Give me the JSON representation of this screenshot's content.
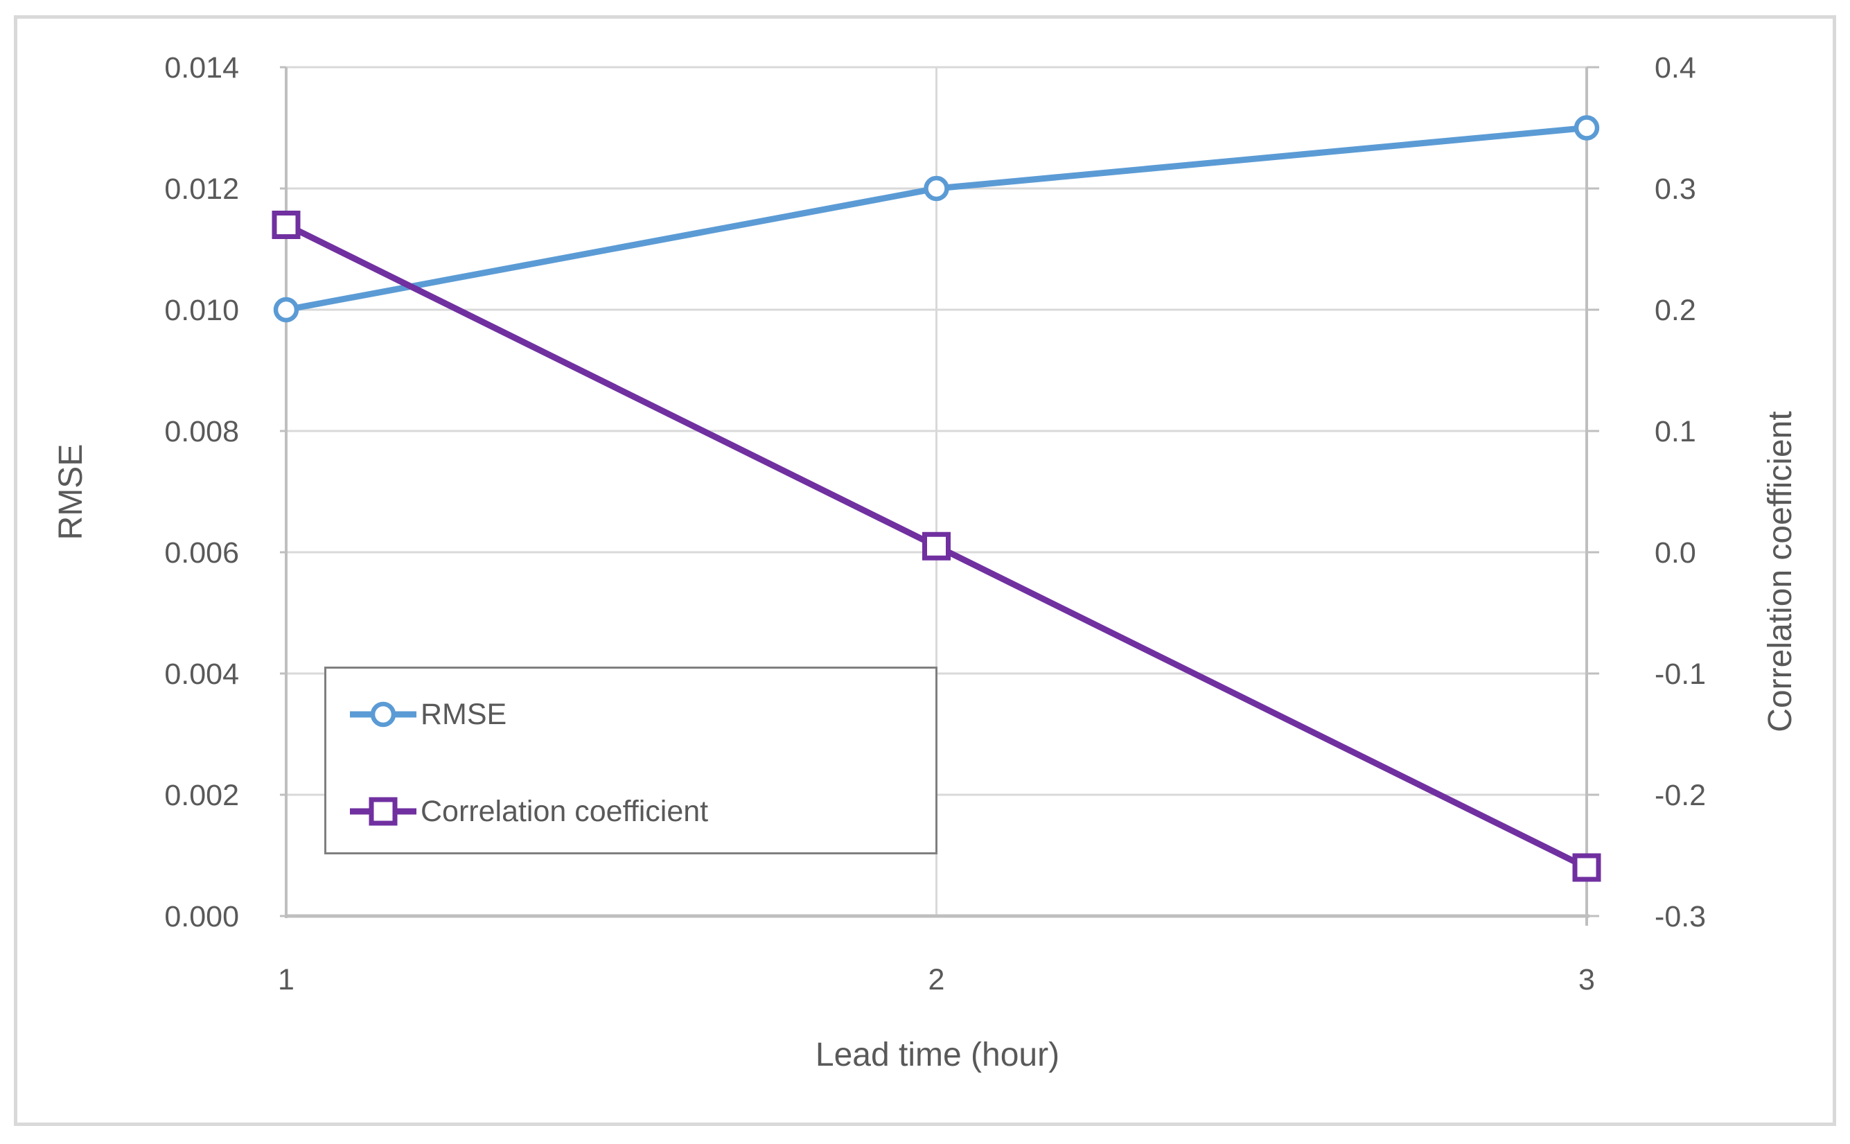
{
  "chart_data": {
    "type": "line",
    "x": [
      1,
      2,
      3
    ],
    "x_tick_labels": [
      "1",
      "2",
      "3"
    ],
    "xlabel": "Lead time (hour)",
    "left_axis": {
      "label": "RMSE",
      "min": 0,
      "max": 0.014,
      "step": 0.002,
      "tick_labels": [
        "0.014",
        "0.012",
        "0.010",
        "0.008",
        "0.006",
        "0.004",
        "0.002",
        "0.000"
      ]
    },
    "right_axis": {
      "label": "Correlation coefficient",
      "min": -0.3,
      "max": 0.4,
      "step": 0.1,
      "tick_labels": [
        "0.4",
        "0.3",
        "0.2",
        "0.1",
        "0.0",
        "-0.1",
        "-0.2",
        "-0.3"
      ]
    },
    "series": [
      {
        "name": "RMSE",
        "axis": "left",
        "marker": "circle",
        "color": "#5B9BD5",
        "values": [
          0.01,
          0.012,
          0.013
        ]
      },
      {
        "name": "Correlation coefficient",
        "axis": "right",
        "marker": "square",
        "color": "#7030A0",
        "values": [
          0.27,
          0.005,
          -0.26
        ]
      }
    ],
    "legend": {
      "position": "inside-bottom-left",
      "entries": [
        "RMSE",
        "Correlation coefficient"
      ]
    },
    "grid": true,
    "text_color": "#595959",
    "gridline_color": "#D9D9D9",
    "axis_line_color": "#BFBFBF",
    "legend_border_color": "#7F7F7F"
  }
}
